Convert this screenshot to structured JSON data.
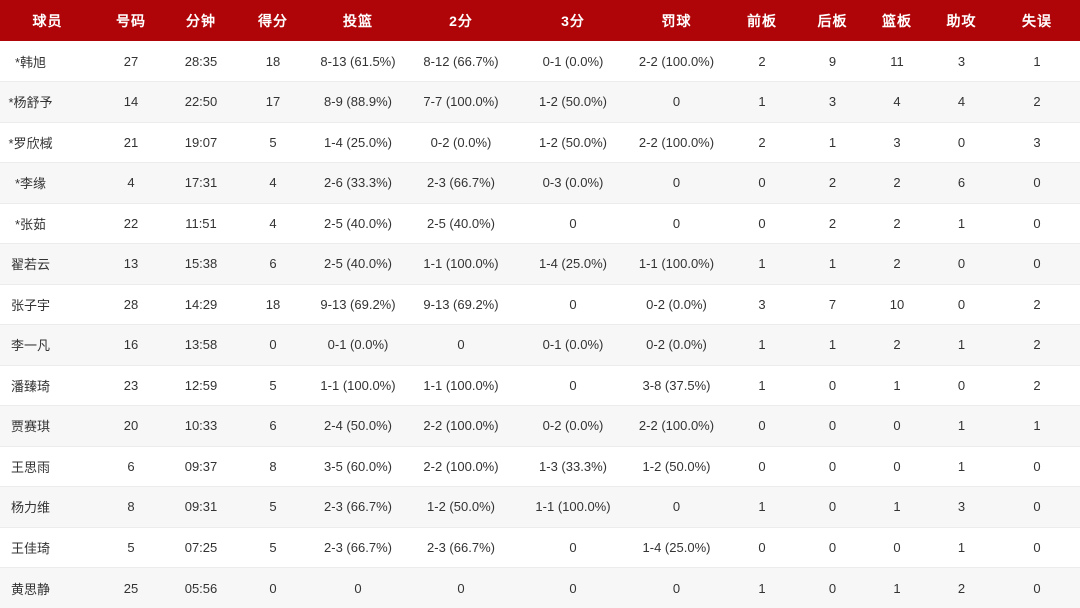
{
  "colors": {
    "header_bg": "#b00508",
    "header_text": "#ffffff",
    "row_alt_bg": "#f7f7f8",
    "row_border": "#ececec",
    "cell_text": "#333333"
  },
  "chart_data": {
    "type": "table",
    "columns": [
      {
        "key": "player",
        "label": "球员"
      },
      {
        "key": "number",
        "label": "号码"
      },
      {
        "key": "minutes",
        "label": "分钟"
      },
      {
        "key": "points",
        "label": "得分"
      },
      {
        "key": "fg",
        "label": "投篮"
      },
      {
        "key": "2pt",
        "label": "2分"
      },
      {
        "key": "3pt",
        "label": "3分"
      },
      {
        "key": "ft",
        "label": "罚球"
      },
      {
        "key": "oreb",
        "label": "前板"
      },
      {
        "key": "dreb",
        "label": "后板"
      },
      {
        "key": "reb",
        "label": "篮板"
      },
      {
        "key": "ast",
        "label": "助攻"
      },
      {
        "key": "tov",
        "label": "失误"
      }
    ],
    "rows": [
      [
        "*韩旭",
        "27",
        "28:35",
        "18",
        "8-13 (61.5%)",
        "8-12 (66.7%)",
        "0-1 (0.0%)",
        "2-2 (100.0%)",
        "2",
        "9",
        "11",
        "3",
        "1"
      ],
      [
        "*杨舒予",
        "14",
        "22:50",
        "17",
        "8-9 (88.9%)",
        "7-7 (100.0%)",
        "1-2 (50.0%)",
        "0",
        "1",
        "3",
        "4",
        "4",
        "2"
      ],
      [
        "*罗欣棫",
        "21",
        "19:07",
        "5",
        "1-4 (25.0%)",
        "0-2 (0.0%)",
        "1-2 (50.0%)",
        "2-2 (100.0%)",
        "2",
        "1",
        "3",
        "0",
        "3"
      ],
      [
        "*李缘",
        "4",
        "17:31",
        "4",
        "2-6 (33.3%)",
        "2-3 (66.7%)",
        "0-3 (0.0%)",
        "0",
        "0",
        "2",
        "2",
        "6",
        "0"
      ],
      [
        "*张茹",
        "22",
        "11:51",
        "4",
        "2-5 (40.0%)",
        "2-5 (40.0%)",
        "0",
        "0",
        "0",
        "2",
        "2",
        "1",
        "0"
      ],
      [
        "翟若云",
        "13",
        "15:38",
        "6",
        "2-5 (40.0%)",
        "1-1 (100.0%)",
        "1-4 (25.0%)",
        "1-1 (100.0%)",
        "1",
        "1",
        "2",
        "0",
        "0"
      ],
      [
        "张子宇",
        "28",
        "14:29",
        "18",
        "9-13 (69.2%)",
        "9-13 (69.2%)",
        "0",
        "0-2 (0.0%)",
        "3",
        "7",
        "10",
        "0",
        "2"
      ],
      [
        "李一凡",
        "16",
        "13:58",
        "0",
        "0-1 (0.0%)",
        "0",
        "0-1 (0.0%)",
        "0-2 (0.0%)",
        "1",
        "1",
        "2",
        "1",
        "2"
      ],
      [
        "潘臻琦",
        "23",
        "12:59",
        "5",
        "1-1 (100.0%)",
        "1-1 (100.0%)",
        "0",
        "3-8 (37.5%)",
        "1",
        "0",
        "1",
        "0",
        "2"
      ],
      [
        "贾赛琪",
        "20",
        "10:33",
        "6",
        "2-4 (50.0%)",
        "2-2 (100.0%)",
        "0-2 (0.0%)",
        "2-2 (100.0%)",
        "0",
        "0",
        "0",
        "1",
        "1"
      ],
      [
        "王思雨",
        "6",
        "09:37",
        "8",
        "3-5 (60.0%)",
        "2-2 (100.0%)",
        "1-3 (33.3%)",
        "1-2 (50.0%)",
        "0",
        "0",
        "0",
        "1",
        "0"
      ],
      [
        "杨力维",
        "8",
        "09:31",
        "5",
        "2-3 (66.7%)",
        "1-2 (50.0%)",
        "1-1 (100.0%)",
        "0",
        "1",
        "0",
        "1",
        "3",
        "0"
      ],
      [
        "王佳琦",
        "5",
        "07:25",
        "5",
        "2-3 (66.7%)",
        "2-3 (66.7%)",
        "0",
        "1-4 (25.0%)",
        "0",
        "0",
        "0",
        "1",
        "0"
      ],
      [
        "黄思静",
        "25",
        "05:56",
        "0",
        "0",
        "0",
        "0",
        "0",
        "1",
        "0",
        "1",
        "2",
        "0"
      ]
    ]
  }
}
